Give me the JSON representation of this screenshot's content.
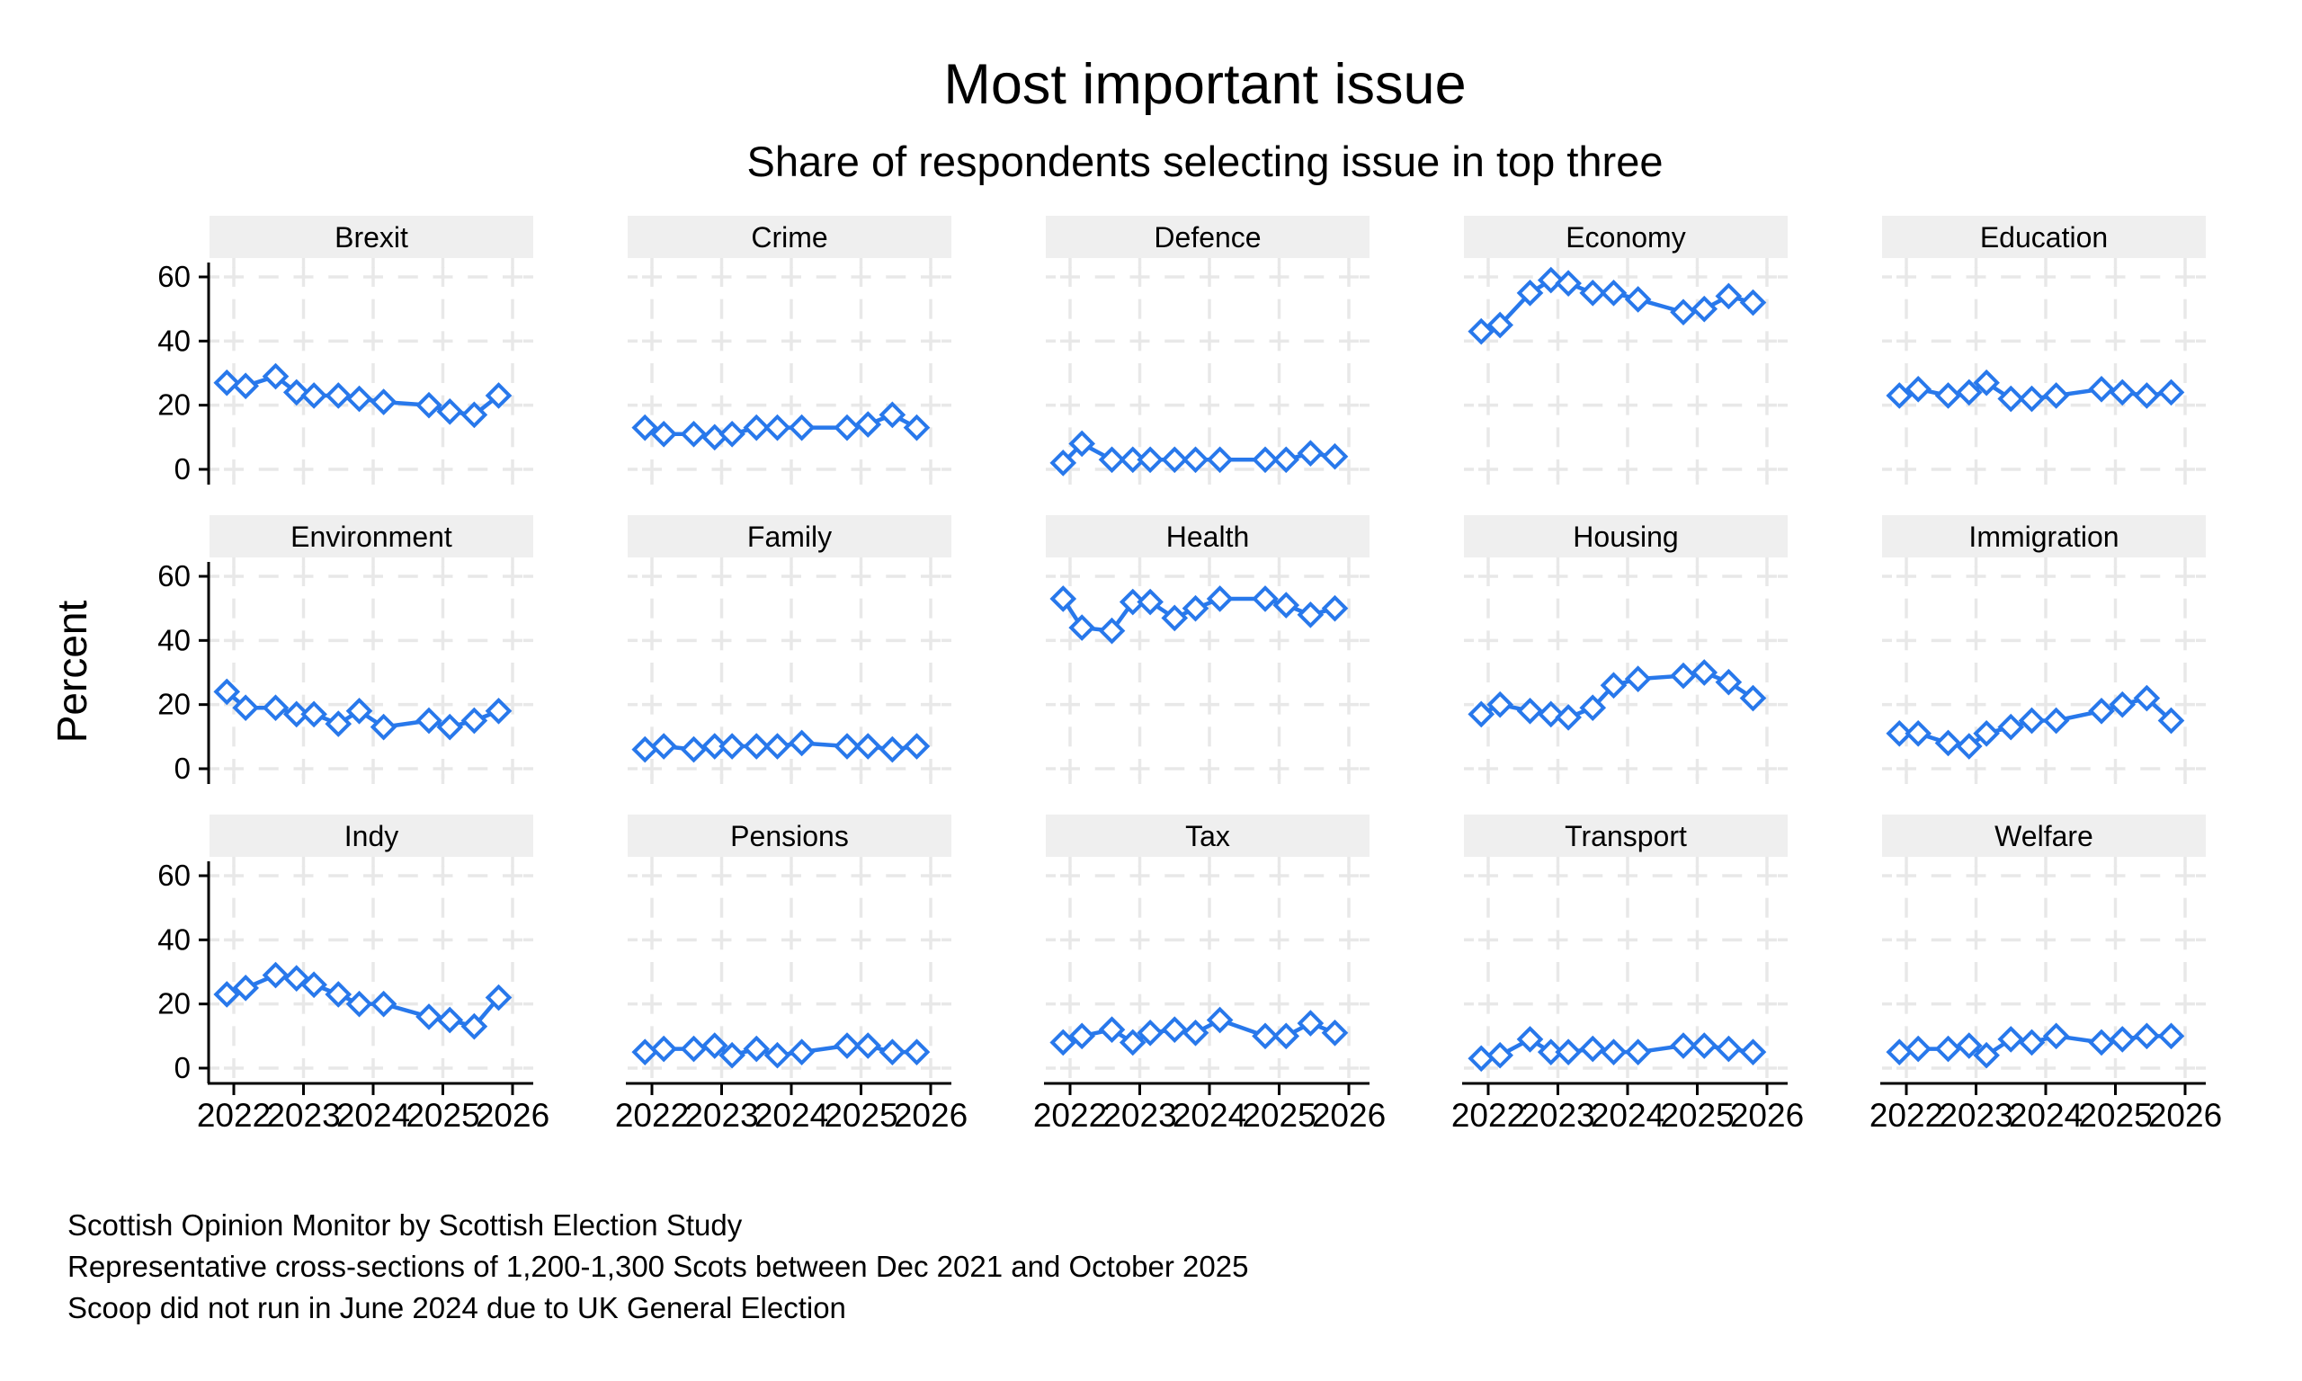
{
  "title": "Most important issue",
  "subtitle": "Share of respondents selecting issue in top three",
  "ylabel": "Percent",
  "notes": [
    "Scottish Opinion Monitor by Scottish Election Study",
    "Representative cross-sections of 1,200-1,300 Scots between Dec 2021 and October 2025",
    "Scoop did not run in June 2024 due to UK General Election"
  ],
  "colors": {
    "line": "#2878EB",
    "marker_fill": "#ffffff",
    "header_bg": "#EFEFEF",
    "grid": "#E8E8E8",
    "axis": "#000000"
  },
  "chart_data": {
    "type": "line",
    "title": "Most important issue",
    "subtitle": "Share of respondents selecting issue in top three",
    "ylabel": "Percent",
    "xlabel": "",
    "legend": "none",
    "grid": "dashed",
    "marker": "hollow-diamond",
    "layout": {
      "rows": 3,
      "cols": 5
    },
    "xlim": [
      2021.65,
      2026.3
    ],
    "ylim": [
      -7,
      66
    ],
    "xticks": [
      2022,
      2023,
      2024,
      2025,
      2026
    ],
    "xtick_labels": [
      "2022",
      "2023",
      "2024",
      "2025",
      "2026"
    ],
    "yticks": [
      0,
      20,
      40,
      60
    ],
    "ytick_labels": [
      "0",
      "20",
      "40",
      "60"
    ],
    "x": [
      2021.9,
      2022.17,
      2022.6,
      2022.9,
      2023.15,
      2023.5,
      2023.8,
      2024.15,
      2024.8,
      2025.1,
      2025.45,
      2025.8
    ],
    "panels": [
      {
        "title": "Brexit",
        "values": [
          27,
          26,
          29,
          24,
          23,
          23,
          22,
          21,
          20,
          18,
          17,
          23
        ]
      },
      {
        "title": "Crime",
        "values": [
          13,
          11,
          11,
          10,
          11,
          13,
          13,
          13,
          13,
          14,
          17,
          13
        ]
      },
      {
        "title": "Defence",
        "values": [
          2,
          8,
          3,
          3,
          3,
          3,
          3,
          3,
          3,
          3,
          5,
          4
        ]
      },
      {
        "title": "Economy",
        "values": [
          43,
          45,
          55,
          59,
          58,
          55,
          55,
          53,
          49,
          50,
          54,
          52
        ]
      },
      {
        "title": "Education",
        "values": [
          23,
          25,
          23,
          24,
          27,
          22,
          22,
          23,
          25,
          24,
          23,
          24
        ]
      },
      {
        "title": "Environment",
        "values": [
          24,
          19,
          19,
          17,
          17,
          14,
          18,
          13,
          15,
          13,
          15,
          18
        ]
      },
      {
        "title": "Family",
        "values": [
          6,
          7,
          6,
          7,
          7,
          7,
          7,
          8,
          7,
          7,
          6,
          7
        ]
      },
      {
        "title": "Health",
        "values": [
          53,
          44,
          43,
          52,
          52,
          47,
          50,
          53,
          53,
          51,
          48,
          50
        ]
      },
      {
        "title": "Housing",
        "values": [
          17,
          20,
          18,
          17,
          16,
          19,
          26,
          28,
          29,
          30,
          27,
          22
        ]
      },
      {
        "title": "Immigration",
        "values": [
          11,
          11,
          8,
          7,
          11,
          13,
          15,
          15,
          18,
          20,
          22,
          15
        ]
      },
      {
        "title": "Indy",
        "values": [
          23,
          25,
          29,
          28,
          26,
          23,
          20,
          20,
          16,
          15,
          13,
          22
        ]
      },
      {
        "title": "Pensions",
        "values": [
          5,
          6,
          6,
          7,
          4,
          6,
          4,
          5,
          7,
          7,
          5,
          5
        ]
      },
      {
        "title": "Tax",
        "values": [
          8,
          10,
          12,
          8,
          11,
          12,
          11,
          15,
          10,
          10,
          14,
          11
        ]
      },
      {
        "title": "Transport",
        "values": [
          3,
          4,
          9,
          5,
          5,
          6,
          5,
          5,
          7,
          7,
          6,
          5
        ]
      },
      {
        "title": "Welfare",
        "values": [
          5,
          6,
          6,
          7,
          4,
          9,
          8,
          10,
          8,
          9,
          10,
          10
        ]
      }
    ]
  }
}
